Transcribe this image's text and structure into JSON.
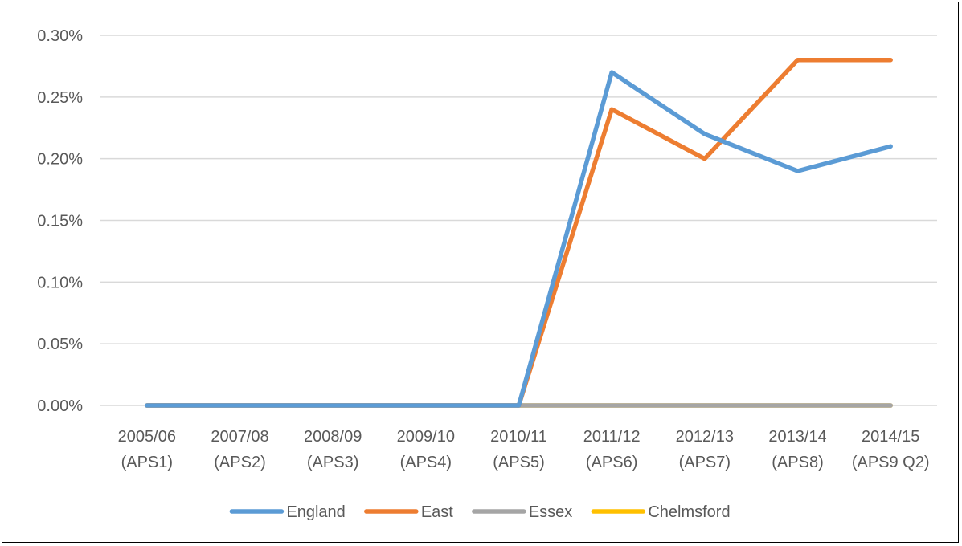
{
  "chart_data": {
    "type": "line",
    "categories": [
      [
        "2005/06",
        "(APS1)"
      ],
      [
        "2007/08",
        "(APS2)"
      ],
      [
        "2008/09",
        "(APS3)"
      ],
      [
        "2009/10",
        "(APS4)"
      ],
      [
        "2010/11",
        "(APS5)"
      ],
      [
        "2011/12",
        "(APS6)"
      ],
      [
        "2012/13",
        "(APS7)"
      ],
      [
        "2013/14",
        "(APS8)"
      ],
      [
        "2014/15",
        "(APS9 Q2)"
      ]
    ],
    "y_ticks": [
      "0.00%",
      "0.05%",
      "0.10%",
      "0.15%",
      "0.20%",
      "0.25%",
      "0.30%"
    ],
    "ylim": [
      0,
      0.3
    ],
    "y_unit": "%",
    "grid": true,
    "legend_position": "bottom",
    "series": [
      {
        "name": "England",
        "color": "#5B9BD5",
        "values": [
          0,
          0,
          0,
          0,
          0,
          0.27,
          0.22,
          0.19,
          0.21
        ]
      },
      {
        "name": "East",
        "color": "#ED7D31",
        "values": [
          0,
          0,
          0,
          0,
          0,
          0.24,
          0.2,
          0.28,
          0.28
        ]
      },
      {
        "name": "Essex",
        "color": "#A5A5A5",
        "values": [
          0,
          0,
          0,
          0,
          0,
          0,
          0,
          0,
          0
        ]
      },
      {
        "name": "Chelmsford",
        "color": "#FFC000",
        "values": [
          0,
          0,
          0,
          0,
          0,
          0,
          0,
          0,
          0
        ]
      }
    ]
  }
}
